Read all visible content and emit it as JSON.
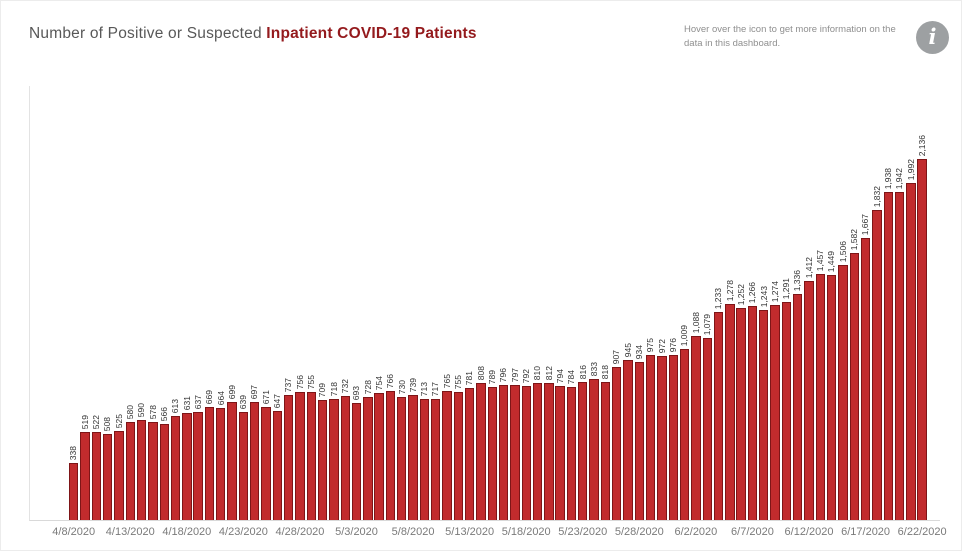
{
  "header": {
    "title_prefix": "Number of Positive or Suspected ",
    "title_emphasis": "Inpatient COVID-19 Patients",
    "info_note": "Hover over the icon to get more information on the data in this dashboard.",
    "info_icon_glyph": "i"
  },
  "colors": {
    "bar_fill": "#c12b2d",
    "bar_border": "#7e1517",
    "title_text": "#585858",
    "title_emphasis": "#941a1d",
    "info_text": "#8f8f8f",
    "info_icon_bg": "#9da0a2",
    "value_label": "#333333",
    "axis_label": "#7a7a7a",
    "axis_line": "#d9d9d9"
  },
  "chart_data": {
    "type": "bar",
    "title": "Number of Positive or Suspected Inpatient COVID-19 Patients",
    "xlabel": "",
    "ylabel": "",
    "grid": false,
    "legend": false,
    "ylim": [
      0,
      2250
    ],
    "scale_max": 2136,
    "bar_value_labels_rotated": true,
    "tick_every": 5,
    "tick_labels": [
      "4/8/2020",
      "4/13/2020",
      "4/18/2020",
      "4/23/2020",
      "4/28/2020",
      "5/3/2020",
      "5/8/2020",
      "5/13/2020",
      "5/18/2020",
      "5/23/2020",
      "5/28/2020",
      "6/2/2020",
      "6/7/2020",
      "6/12/2020",
      "6/17/2020",
      "6/22/2020"
    ],
    "values": [
      338,
      519,
      522,
      508,
      525,
      580,
      590,
      578,
      566,
      613,
      631,
      637,
      669,
      664,
      699,
      639,
      697,
      671,
      647,
      737,
      756,
      755,
      709,
      718,
      732,
      693,
      728,
      754,
      766,
      730,
      739,
      713,
      717,
      765,
      755,
      781,
      808,
      789,
      796,
      797,
      792,
      810,
      812,
      794,
      784,
      816,
      833,
      818,
      907,
      945,
      934,
      975,
      972,
      976,
      1009,
      1088,
      1079,
      1233,
      1278,
      1252,
      1266,
      1243,
      1274,
      1291,
      1336,
      1412,
      1457,
      1449,
      1506,
      1582,
      1667,
      1832,
      1938,
      1942,
      1992,
      2136
    ]
  }
}
